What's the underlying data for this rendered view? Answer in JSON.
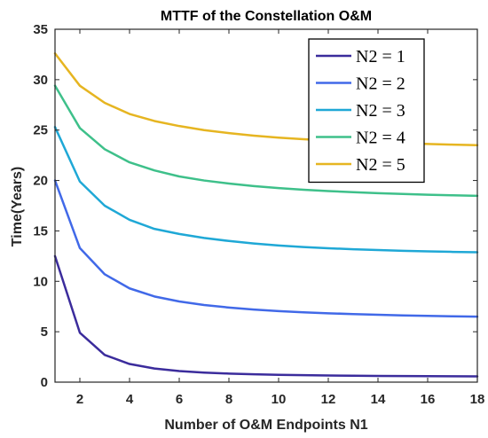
{
  "chart_data": {
    "type": "line",
    "title": "MTTF of the Constellation O&M",
    "xlabel": "Number of O&M Endpoints N1",
    "ylabel": "Time(Years)",
    "xlim": [
      1,
      18
    ],
    "ylim": [
      0,
      35
    ],
    "xticks": [
      2,
      4,
      6,
      8,
      10,
      12,
      14,
      16,
      18
    ],
    "yticks": [
      0,
      5,
      10,
      15,
      20,
      25,
      30,
      35
    ],
    "grid": false,
    "legend_position": "top-right",
    "x": [
      1,
      2,
      3,
      4,
      5,
      6,
      7,
      8,
      9,
      10,
      11,
      12,
      13,
      14,
      15,
      16,
      17,
      18
    ],
    "series": [
      {
        "name": "N2 = 1",
        "color": "#3b2c9c",
        "values": [
          12.5,
          4.9,
          2.7,
          1.8,
          1.35,
          1.1,
          0.95,
          0.85,
          0.78,
          0.73,
          0.69,
          0.66,
          0.64,
          0.62,
          0.6,
          0.59,
          0.58,
          0.57
        ]
      },
      {
        "name": "N2 = 2",
        "color": "#4169e8",
        "values": [
          20.0,
          13.3,
          10.7,
          9.3,
          8.5,
          8.0,
          7.65,
          7.4,
          7.2,
          7.05,
          6.93,
          6.83,
          6.75,
          6.68,
          6.62,
          6.57,
          6.53,
          6.5
        ]
      },
      {
        "name": "N2 = 3",
        "color": "#1fa8d6",
        "values": [
          25.3,
          19.9,
          17.5,
          16.1,
          15.2,
          14.7,
          14.3,
          14.0,
          13.75,
          13.55,
          13.4,
          13.28,
          13.18,
          13.1,
          13.03,
          12.97,
          12.92,
          12.88
        ]
      },
      {
        "name": "N2 = 4",
        "color": "#3ec08a",
        "values": [
          29.4,
          25.2,
          23.1,
          21.8,
          21.0,
          20.4,
          20.0,
          19.7,
          19.45,
          19.25,
          19.08,
          18.95,
          18.84,
          18.74,
          18.66,
          18.59,
          18.53,
          18.48
        ]
      },
      {
        "name": "N2 = 5",
        "color": "#e6b521",
        "values": [
          32.6,
          29.4,
          27.7,
          26.6,
          25.9,
          25.4,
          25.0,
          24.7,
          24.45,
          24.25,
          24.1,
          23.97,
          23.86,
          23.77,
          23.69,
          23.62,
          23.56,
          23.5
        ]
      }
    ]
  }
}
